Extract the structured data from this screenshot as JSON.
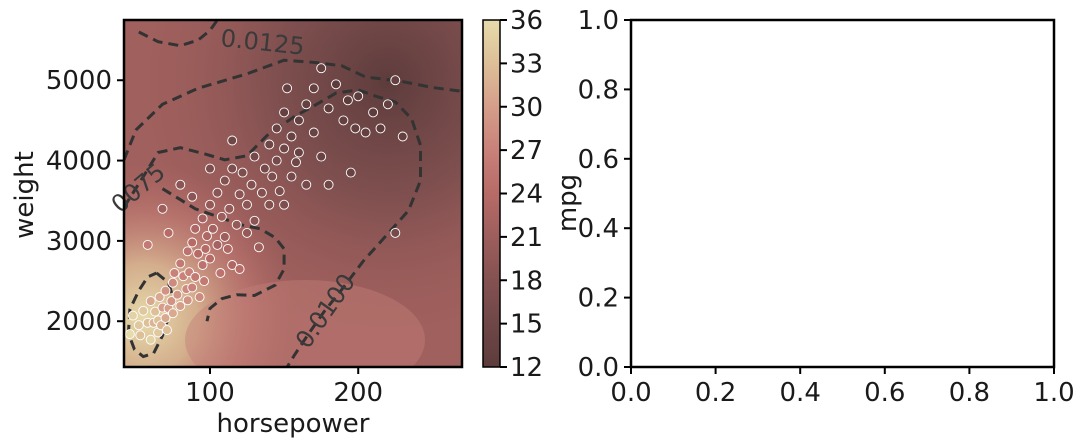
{
  "chart_data": [
    {
      "type": "scatter",
      "title": "",
      "xlabel": "horsepower",
      "ylabel": "weight",
      "xlim": [
        42,
        270
      ],
      "ylim": [
        1430,
        5750
      ],
      "xticks": [
        100,
        200
      ],
      "xtick_labels": [
        "100",
        "200"
      ],
      "yticks": [
        2000,
        3000,
        4000,
        5000
      ],
      "ytick_labels": [
        "2000",
        "3000",
        "4000",
        "5000"
      ],
      "background": "filled contour of mpg (kernel-smoothed)",
      "density_contour_labels": [
        "0.0125",
        "0075",
        "0.0100"
      ],
      "colorbar": {
        "label": "mpg",
        "vmin": 12,
        "vmax": 36,
        "ticks": [
          12,
          15,
          18,
          21,
          24,
          27,
          30,
          33,
          36
        ],
        "tick_labels": [
          "12",
          "15",
          "18",
          "21",
          "24",
          "27",
          "30",
          "33",
          "36"
        ],
        "colors": [
          "#5e3c3c",
          "#6f4747",
          "#845151",
          "#9d5e5c",
          "#b76b67",
          "#c98179",
          "#d59e8a",
          "#ddbf98",
          "#e6dbaa"
        ]
      },
      "points": [
        [
          46,
          1840,
          36
        ],
        [
          48,
          2070,
          35
        ],
        [
          52,
          1950,
          34
        ],
        [
          53,
          1825,
          33
        ],
        [
          55,
          2130,
          34
        ],
        [
          58,
          1980,
          33
        ],
        [
          60,
          2250,
          31
        ],
        [
          60,
          1770,
          35
        ],
        [
          62,
          1980,
          32
        ],
        [
          63,
          2120,
          33
        ],
        [
          65,
          1860,
          34
        ],
        [
          65,
          2010,
          33
        ],
        [
          66,
          2300,
          31
        ],
        [
          67,
          1950,
          32
        ],
        [
          68,
          2170,
          30
        ],
        [
          70,
          2040,
          31
        ],
        [
          70,
          2380,
          29
        ],
        [
          71,
          1890,
          33
        ],
        [
          72,
          2160,
          30
        ],
        [
          74,
          2250,
          29
        ],
        [
          75,
          2480,
          28
        ],
        [
          75,
          2100,
          31
        ],
        [
          76,
          2600,
          27
        ],
        [
          78,
          2330,
          29
        ],
        [
          80,
          2190,
          30
        ],
        [
          80,
          2720,
          26
        ],
        [
          82,
          2560,
          27
        ],
        [
          84,
          2400,
          28
        ],
        [
          85,
          2870,
          25
        ],
        [
          85,
          2260,
          29
        ],
        [
          86,
          2610,
          27
        ],
        [
          88,
          2980,
          24
        ],
        [
          88,
          2420,
          27
        ],
        [
          90,
          3150,
          23
        ],
        [
          90,
          2550,
          26
        ],
        [
          92,
          2840,
          24
        ],
        [
          93,
          2300,
          28
        ],
        [
          95,
          2700,
          25
        ],
        [
          95,
          3280,
          22
        ],
        [
          96,
          2500,
          26
        ],
        [
          97,
          2900,
          24
        ],
        [
          98,
          3060,
          23
        ],
        [
          100,
          2780,
          24
        ],
        [
          100,
          3450,
          20
        ],
        [
          102,
          3150,
          22
        ],
        [
          105,
          2950,
          22
        ],
        [
          105,
          3600,
          19
        ],
        [
          107,
          2600,
          25
        ],
        [
          108,
          3300,
          21
        ],
        [
          110,
          3050,
          21
        ],
        [
          110,
          3750,
          18
        ],
        [
          112,
          2900,
          23
        ],
        [
          113,
          3400,
          20
        ],
        [
          115,
          2700,
          23
        ],
        [
          115,
          3900,
          17
        ],
        [
          118,
          3200,
          20
        ],
        [
          120,
          3580,
          19
        ],
        [
          120,
          2650,
          24
        ],
        [
          122,
          3850,
          17
        ],
        [
          125,
          3100,
          20
        ],
        [
          125,
          3450,
          19
        ],
        [
          128,
          3700,
          18
        ],
        [
          130,
          4050,
          16
        ],
        [
          130,
          3250,
          19
        ],
        [
          133,
          2920,
          21
        ],
        [
          135,
          3600,
          18
        ],
        [
          137,
          3900,
          16
        ],
        [
          140,
          4200,
          15
        ],
        [
          140,
          3450,
          18
        ],
        [
          142,
          3800,
          17
        ],
        [
          145,
          4400,
          14
        ],
        [
          145,
          4000,
          16
        ],
        [
          147,
          3620,
          17
        ],
        [
          150,
          4600,
          13
        ],
        [
          150,
          4150,
          15
        ],
        [
          150,
          3450,
          17
        ],
        [
          152,
          4900,
          13
        ],
        [
          155,
          4300,
          14
        ],
        [
          155,
          3800,
          16
        ],
        [
          158,
          3980,
          15
        ],
        [
          160,
          4500,
          13
        ],
        [
          160,
          4100,
          14
        ],
        [
          165,
          4700,
          13
        ],
        [
          165,
          3700,
          16
        ],
        [
          170,
          4900,
          13
        ],
        [
          170,
          4350,
          14
        ],
        [
          175,
          5150,
          13
        ],
        [
          175,
          4050,
          14
        ],
        [
          180,
          4650,
          12
        ],
        [
          180,
          3700,
          15
        ],
        [
          185,
          4950,
          12
        ],
        [
          190,
          4500,
          13
        ],
        [
          193,
          4750,
          12
        ],
        [
          195,
          3850,
          14
        ],
        [
          198,
          4400,
          13
        ],
        [
          200,
          4800,
          12
        ],
        [
          205,
          4350,
          13
        ],
        [
          210,
          4600,
          12
        ],
        [
          215,
          4400,
          12
        ],
        [
          220,
          4700,
          13
        ],
        [
          225,
          5000,
          13
        ],
        [
          225,
          3100,
          16
        ],
        [
          230,
          4300,
          13
        ],
        [
          80,
          3700,
          19
        ],
        [
          68,
          3400,
          21
        ],
        [
          72,
          3100,
          24
        ],
        [
          58,
          2950,
          26
        ],
        [
          88,
          3550,
          19
        ],
        [
          100,
          3900,
          17
        ],
        [
          115,
          4250,
          15
        ]
      ],
      "density_contours": [
        [
          [
            52,
            5600
          ],
          [
            65,
            5480
          ],
          [
            80,
            5430
          ],
          [
            92,
            5500
          ],
          [
            100,
            5620
          ],
          [
            105,
            5750
          ]
        ],
        [
          [
            42,
            3420
          ],
          [
            55,
            3800
          ],
          [
            65,
            4100
          ],
          [
            80,
            4160
          ],
          [
            95,
            4090
          ],
          [
            110,
            4010
          ],
          [
            125,
            4060
          ],
          [
            140,
            4340
          ],
          [
            158,
            4560
          ],
          [
            170,
            4680
          ],
          [
            185,
            4840
          ],
          [
            200,
            4880
          ],
          [
            212,
            4800
          ],
          [
            225,
            4730
          ],
          [
            236,
            4520
          ],
          [
            242,
            4190
          ],
          [
            242,
            3750
          ],
          [
            234,
            3380
          ],
          [
            219,
            3070
          ],
          [
            203,
            2740
          ],
          [
            190,
            2420
          ],
          [
            177,
            2120
          ],
          [
            166,
            1830
          ],
          [
            157,
            1580
          ],
          [
            152,
            1430
          ]
        ],
        [
          [
            68,
            3650
          ],
          [
            90,
            3400
          ],
          [
            107,
            3290
          ],
          [
            121,
            3200
          ],
          [
            134,
            3150
          ],
          [
            144,
            3040
          ],
          [
            150,
            2900
          ],
          [
            150,
            2650
          ],
          [
            144,
            2450
          ],
          [
            130,
            2320
          ],
          [
            118,
            2330
          ],
          [
            108,
            2280
          ],
          [
            100,
            2160
          ],
          [
            98,
            2000
          ]
        ],
        [
          [
            42,
            4010
          ],
          [
            50,
            4380
          ],
          [
            68,
            4700
          ],
          [
            92,
            4900
          ],
          [
            125,
            5080
          ],
          [
            150,
            5250
          ],
          [
            172,
            5220
          ],
          [
            189,
            5180
          ],
          [
            205,
            5040
          ],
          [
            228,
            4990
          ],
          [
            250,
            4910
          ],
          [
            267,
            4870
          ],
          [
            270,
            4860
          ]
        ],
        [
          [
            64,
            2600
          ],
          [
            72,
            2480
          ],
          [
            75,
            2300
          ],
          [
            72,
            2050
          ],
          [
            68,
            1820
          ],
          [
            62,
            1600
          ],
          [
            55,
            1560
          ],
          [
            49,
            1650
          ],
          [
            45,
            1850
          ],
          [
            46,
            2150
          ],
          [
            52,
            2380
          ],
          [
            58,
            2550
          ],
          [
            64,
            2600
          ]
        ]
      ]
    },
    {
      "type": "scatter",
      "title": "",
      "xlabel": "",
      "ylabel": "",
      "xlim": [
        0,
        1
      ],
      "ylim": [
        0,
        1
      ],
      "xticks": [
        0,
        0.2,
        0.4,
        0.6,
        0.8,
        1.0
      ],
      "xtick_labels": [
        "0.0",
        "0.2",
        "0.4",
        "0.6",
        "0.8",
        "1.0"
      ],
      "yticks": [
        0,
        0.2,
        0.4,
        0.6,
        0.8,
        1.0
      ],
      "ytick_labels": [
        "0.0",
        "0.2",
        "0.4",
        "0.6",
        "0.8",
        "1.0"
      ],
      "series": []
    }
  ]
}
